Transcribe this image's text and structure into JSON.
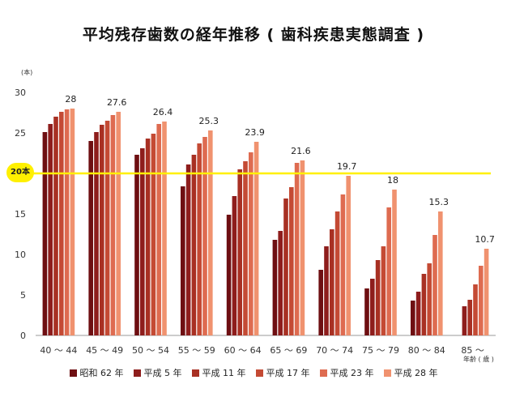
{
  "title": "平均残存歯数の経年推移 ( 歯科疾患実態調査 )",
  "ylabel": "(本)",
  "xlabel": "年齢 ( 歳 )",
  "reference_line": {
    "value": 20,
    "label": "20本",
    "color": "#fff000"
  },
  "chart_data": {
    "type": "bar",
    "title": "平均残存歯数の経年推移 ( 歯科疾患実態調査 )",
    "ylabel": "(本)",
    "xlabel": "年齢 ( 歳 )",
    "ylim": [
      0,
      30
    ],
    "yticks": [
      "0",
      "5",
      "10",
      "15",
      "20",
      "25",
      "30"
    ],
    "categories": [
      "40 〜 44",
      "45 〜 49",
      "50 〜 54",
      "55 〜 59",
      "60 〜 64",
      "65 〜 69",
      "70 〜 74",
      "75 〜 79",
      "80 〜 84",
      "85 〜"
    ],
    "series": [
      {
        "name": "昭和 62 年",
        "color": "#6e0f12",
        "values": [
          25.1,
          24.0,
          22.3,
          18.4,
          14.9,
          11.8,
          8.1,
          5.8,
          4.3,
          null
        ]
      },
      {
        "name": "平成 5 年",
        "color": "#8e1d1c",
        "values": [
          26.1,
          25.1,
          23.1,
          21.1,
          17.2,
          12.9,
          11.0,
          7.0,
          5.4,
          3.6
        ]
      },
      {
        "name": "平成 11 年",
        "color": "#a83023",
        "values": [
          27.0,
          26.0,
          24.3,
          22.3,
          20.5,
          16.9,
          13.1,
          9.3,
          7.6,
          4.4
        ]
      },
      {
        "name": "平成 17 年",
        "color": "#c44a34",
        "values": [
          27.6,
          26.5,
          24.9,
          23.7,
          21.5,
          18.3,
          15.3,
          11.0,
          8.9,
          6.3
        ]
      },
      {
        "name": "平成 23 年",
        "color": "#de6b50",
        "values": [
          27.9,
          27.2,
          26.1,
          24.5,
          22.6,
          21.3,
          17.4,
          15.8,
          12.4,
          8.6
        ]
      },
      {
        "name": "平成 28 年",
        "color": "#f0926f",
        "values": [
          28.0,
          27.6,
          26.4,
          25.3,
          23.9,
          21.6,
          19.7,
          18.0,
          15.3,
          10.7
        ]
      }
    ],
    "data_labels": [
      "28",
      "27.6",
      "26.4",
      "25.3",
      "23.9",
      "21.6",
      "19.7",
      "18",
      "15.3",
      "10.7"
    ],
    "legend": "bottom",
    "grid": false
  }
}
